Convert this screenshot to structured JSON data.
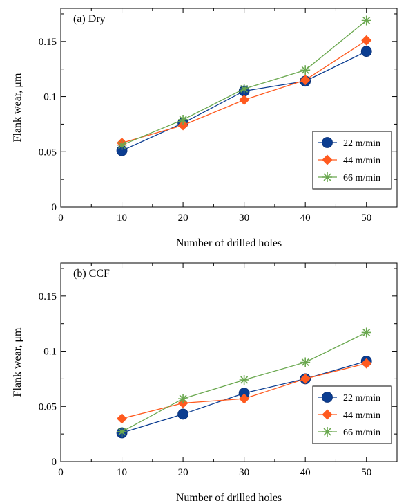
{
  "chart_data": [
    {
      "type": "line",
      "title": "(a) Dry",
      "xlabel": "Number of drilled holes",
      "ylabel": "Flank wear, μm",
      "xlim": [
        0,
        55
      ],
      "ylim": [
        0,
        0.18
      ],
      "x_ticks": [
        0,
        10,
        20,
        30,
        40,
        50
      ],
      "x_tick_labels": [
        "0",
        "10",
        "20",
        "30",
        "40",
        "50"
      ],
      "y_ticks": [
        0,
        0.05,
        0.1,
        0.15
      ],
      "y_tick_labels": [
        "0",
        "0.05",
        "0.1",
        "0.15"
      ],
      "legend_position": "bottom-right",
      "grid": false,
      "x": [
        10,
        20,
        30,
        40,
        50
      ],
      "series": [
        {
          "name": "22 m/min",
          "values": [
            0.051,
            0.076,
            0.105,
            0.114,
            0.141
          ],
          "color": "#0b3d91",
          "marker": "circle"
        },
        {
          "name": "44 m/min",
          "values": [
            0.058,
            0.074,
            0.097,
            0.115,
            0.151
          ],
          "color": "#ff5a1f",
          "marker": "diamond"
        },
        {
          "name": "66 m/min",
          "values": [
            0.056,
            0.079,
            0.107,
            0.124,
            0.169
          ],
          "color": "#6aa84f",
          "marker": "asterisk"
        }
      ]
    },
    {
      "type": "line",
      "title": "(b) CCF",
      "xlabel": "Number of drilled holes",
      "ylabel": "Flank wear, μm",
      "xlim": [
        0,
        55
      ],
      "ylim": [
        0,
        0.18
      ],
      "x_ticks": [
        0,
        10,
        20,
        30,
        40,
        50
      ],
      "x_tick_labels": [
        "0",
        "10",
        "20",
        "30",
        "40",
        "50"
      ],
      "y_ticks": [
        0,
        0.05,
        0.1,
        0.15
      ],
      "y_tick_labels": [
        "0",
        "0.05",
        "0.1",
        "0.15"
      ],
      "legend_position": "bottom-right",
      "grid": false,
      "x": [
        10,
        20,
        30,
        40,
        50
      ],
      "series": [
        {
          "name": "22 m/min",
          "values": [
            0.026,
            0.043,
            0.062,
            0.075,
            0.091
          ],
          "color": "#0b3d91",
          "marker": "circle"
        },
        {
          "name": "44 m/min",
          "values": [
            0.039,
            0.053,
            0.057,
            0.075,
            0.089
          ],
          "color": "#ff5a1f",
          "marker": "diamond"
        },
        {
          "name": "66 m/min",
          "values": [
            0.027,
            0.057,
            0.074,
            0.09,
            0.117
          ],
          "color": "#6aa84f",
          "marker": "asterisk"
        }
      ]
    }
  ]
}
